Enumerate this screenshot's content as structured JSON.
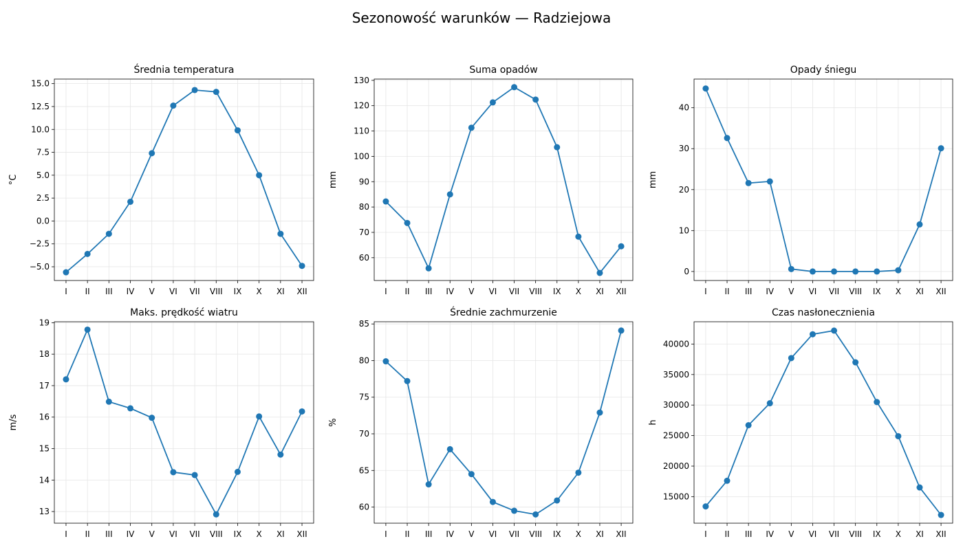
{
  "title": "Sezonowość warunków — Radziejowa",
  "months": [
    "I",
    "II",
    "III",
    "IV",
    "V",
    "VI",
    "VII",
    "VIII",
    "IX",
    "X",
    "XI",
    "XII"
  ],
  "chart_data": [
    {
      "type": "line",
      "title": "Średnia temperatura",
      "ylabel": "°C",
      "ylim": [
        -6.5,
        15.5
      ],
      "yticks": [
        -5.0,
        -2.5,
        0.0,
        2.5,
        5.0,
        7.5,
        10.0,
        12.5,
        15.0
      ],
      "ytick_labels": [
        "−5.0",
        "−2.5",
        "0.0",
        "2.5",
        "5.0",
        "7.5",
        "10.0",
        "12.5",
        "15.0"
      ],
      "categories": [
        "I",
        "II",
        "III",
        "IV",
        "V",
        "VI",
        "VII",
        "VIII",
        "IX",
        "X",
        "XI",
        "XII"
      ],
      "values": [
        -5.6,
        -3.6,
        -1.4,
        2.1,
        7.4,
        12.6,
        14.3,
        14.1,
        9.9,
        5.0,
        -1.4,
        -4.9
      ],
      "grid": true,
      "color": "#1f77b4"
    },
    {
      "type": "line",
      "title": "Suma opadów",
      "ylabel": "mm",
      "ylim": [
        51,
        130.5
      ],
      "yticks": [
        60,
        70,
        80,
        90,
        100,
        110,
        120,
        130
      ],
      "ytick_labels": [
        "60",
        "70",
        "80",
        "90",
        "100",
        "110",
        "120",
        "130"
      ],
      "categories": [
        "I",
        "II",
        "III",
        "IV",
        "V",
        "VI",
        "VII",
        "VIII",
        "IX",
        "X",
        "XI",
        "XII"
      ],
      "values": [
        82.2,
        73.7,
        55.8,
        85.0,
        111.3,
        121.3,
        127.3,
        122.4,
        103.6,
        68.3,
        54.0,
        64.5
      ],
      "grid": true,
      "color": "#1f77b4"
    },
    {
      "type": "line",
      "title": "Opady śniegu",
      "ylabel": "mm",
      "ylim": [
        -2.2,
        47
      ],
      "yticks": [
        0,
        10,
        20,
        30,
        40
      ],
      "ytick_labels": [
        "0",
        "10",
        "20",
        "30",
        "40"
      ],
      "categories": [
        "I",
        "II",
        "III",
        "IV",
        "V",
        "VI",
        "VII",
        "VIII",
        "IX",
        "X",
        "XI",
        "XII"
      ],
      "values": [
        44.7,
        32.6,
        21.6,
        22.0,
        0.6,
        0.0,
        0.0,
        0.0,
        0.0,
        0.3,
        11.5,
        30.1
      ],
      "grid": true,
      "color": "#1f77b4"
    },
    {
      "type": "line",
      "title": "Maks. prędkość wiatru",
      "ylabel": "m/s",
      "ylim": [
        12.63,
        19.03
      ],
      "yticks": [
        13,
        14,
        15,
        16,
        17,
        18,
        19
      ],
      "ytick_labels": [
        "13",
        "14",
        "15",
        "16",
        "17",
        "18",
        "19"
      ],
      "categories": [
        "I",
        "II",
        "III",
        "IV",
        "V",
        "VI",
        "VII",
        "VIII",
        "IX",
        "X",
        "XI",
        "XII"
      ],
      "values": [
        17.2,
        18.78,
        16.49,
        16.28,
        15.98,
        14.25,
        14.16,
        12.91,
        14.26,
        16.02,
        14.81,
        16.18
      ],
      "grid": true,
      "color": "#1f77b4"
    },
    {
      "type": "line",
      "title": "Średnie zachmurzenie",
      "ylabel": "%",
      "ylim": [
        57.8,
        85.3
      ],
      "yticks": [
        60,
        65,
        70,
        75,
        80,
        85
      ],
      "ytick_labels": [
        "60",
        "65",
        "70",
        "75",
        "80",
        "85"
      ],
      "categories": [
        "I",
        "II",
        "III",
        "IV",
        "V",
        "VI",
        "VII",
        "VIII",
        "IX",
        "X",
        "XI",
        "XII"
      ],
      "values": [
        79.9,
        77.2,
        63.1,
        67.9,
        64.5,
        60.7,
        59.5,
        59.0,
        60.9,
        64.7,
        72.9,
        84.1
      ],
      "grid": true,
      "color": "#1f77b4"
    },
    {
      "type": "line",
      "title": "Czas nasłonecznienia",
      "ylabel": "h",
      "ylim": [
        10650,
        43650
      ],
      "yticks": [
        15000,
        20000,
        25000,
        30000,
        35000,
        40000
      ],
      "ytick_labels": [
        "15000",
        "20000",
        "25000",
        "30000",
        "35000",
        "40000"
      ],
      "categories": [
        "I",
        "II",
        "III",
        "IV",
        "V",
        "VI",
        "VII",
        "VIII",
        "IX",
        "X",
        "XI",
        "XII"
      ],
      "values": [
        13400,
        17600,
        26700,
        30300,
        37700,
        41600,
        42200,
        37000,
        30500,
        24900,
        16500,
        12000
      ],
      "grid": true,
      "color": "#1f77b4"
    }
  ]
}
